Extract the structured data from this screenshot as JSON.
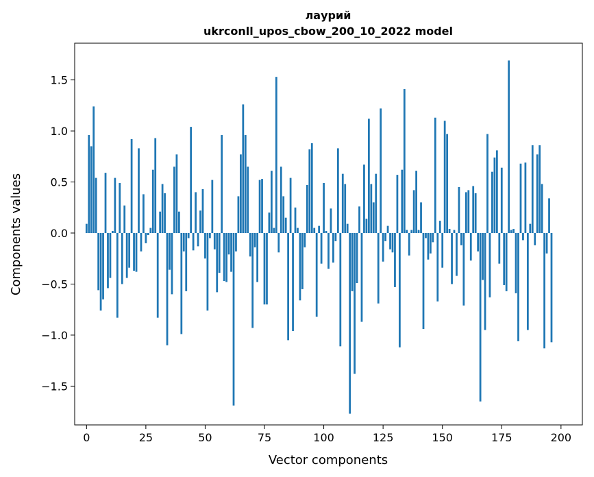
{
  "chart_data": {
    "type": "bar",
    "title_lines": [
      "лаурий",
      "ukrconll_upos_cbow_200_10_2022 model"
    ],
    "xlabel": "Vector components",
    "ylabel": "Components values",
    "xlim": [
      -5,
      209
    ],
    "ylim": [
      -1.88,
      1.86
    ],
    "xticks": [
      0,
      25,
      50,
      75,
      100,
      125,
      150,
      175,
      200
    ],
    "xtick_labels": [
      "0",
      "25",
      "50",
      "75",
      "100",
      "125",
      "150",
      "175",
      "200"
    ],
    "yticks": [
      -1.5,
      -1.0,
      -0.5,
      0.0,
      0.5,
      1.0,
      1.5
    ],
    "ytick_labels": [
      "−1.5",
      "−1.0",
      "−0.5",
      "0.0",
      "0.5",
      "1.0",
      "1.5"
    ],
    "grid": false,
    "bar_color": "#1f77b4",
    "x_start": 0,
    "values": [
      0.09,
      0.96,
      0.85,
      1.24,
      0.54,
      -0.56,
      -0.76,
      -0.65,
      0.59,
      -0.54,
      -0.44,
      0.02,
      0.54,
      -0.83,
      0.49,
      -0.5,
      0.27,
      -0.44,
      -0.34,
      0.92,
      -0.37,
      -0.38,
      0.83,
      -0.18,
      0.38,
      -0.1,
      -0.02,
      0.05,
      0.62,
      0.93,
      -0.83,
      0.21,
      0.48,
      0.39,
      -1.1,
      -0.36,
      -0.6,
      0.65,
      0.77,
      0.21,
      -0.99,
      -0.18,
      -0.57,
      -0.05,
      1.04,
      -0.17,
      0.4,
      -0.13,
      0.22,
      0.43,
      -0.25,
      -0.76,
      -0.05,
      0.52,
      -0.16,
      -0.58,
      -0.39,
      0.96,
      -0.47,
      -0.48,
      -0.21,
      -0.38,
      -1.69,
      -0.18,
      0.36,
      0.77,
      1.26,
      0.96,
      0.65,
      -0.23,
      -0.93,
      -0.14,
      -0.48,
      0.52,
      0.53,
      -0.7,
      -0.7,
      0.2,
      0.61,
      0.05,
      1.53,
      -0.19,
      0.65,
      0.36,
      0.15,
      -1.05,
      0.54,
      -0.96,
      0.25,
      0.05,
      -0.66,
      -0.55,
      -0.14,
      0.47,
      0.82,
      0.88,
      0.05,
      -0.82,
      0.07,
      -0.3,
      0.49,
      0.02,
      -0.35,
      0.24,
      -0.29,
      -0.08,
      0.83,
      -1.11,
      0.58,
      0.48,
      0.09,
      -1.77,
      -0.57,
      -1.38,
      -0.49,
      0.26,
      -0.87,
      0.67,
      0.14,
      1.12,
      0.48,
      0.3,
      0.58,
      -0.69,
      1.22,
      -0.28,
      -0.08,
      0.07,
      -0.16,
      -0.19,
      -0.53,
      0.57,
      -1.12,
      0.62,
      1.41,
      0.03,
      -0.22,
      0.03,
      0.42,
      0.61,
      0.03,
      0.3,
      -0.94,
      -0.05,
      -0.26,
      -0.2,
      -0.09,
      1.13,
      -0.67,
      0.12,
      -0.34,
      1.1,
      0.97,
      0.04,
      -0.5,
      0.03,
      -0.42,
      0.45,
      -0.12,
      -0.71,
      0.4,
      0.42,
      -0.27,
      0.46,
      0.39,
      -0.18,
      -1.65,
      -0.46,
      -0.95,
      0.97,
      -0.63,
      0.6,
      0.74,
      0.81,
      -0.3,
      0.64,
      -0.51,
      -0.57,
      1.69,
      0.03,
      0.04,
      -0.59,
      -1.06,
      0.68,
      -0.07,
      0.69,
      -0.95,
      0.09,
      0.86,
      -0.12,
      0.77,
      0.86,
      0.48,
      -1.13,
      -0.2,
      0.34,
      -1.07
    ]
  }
}
